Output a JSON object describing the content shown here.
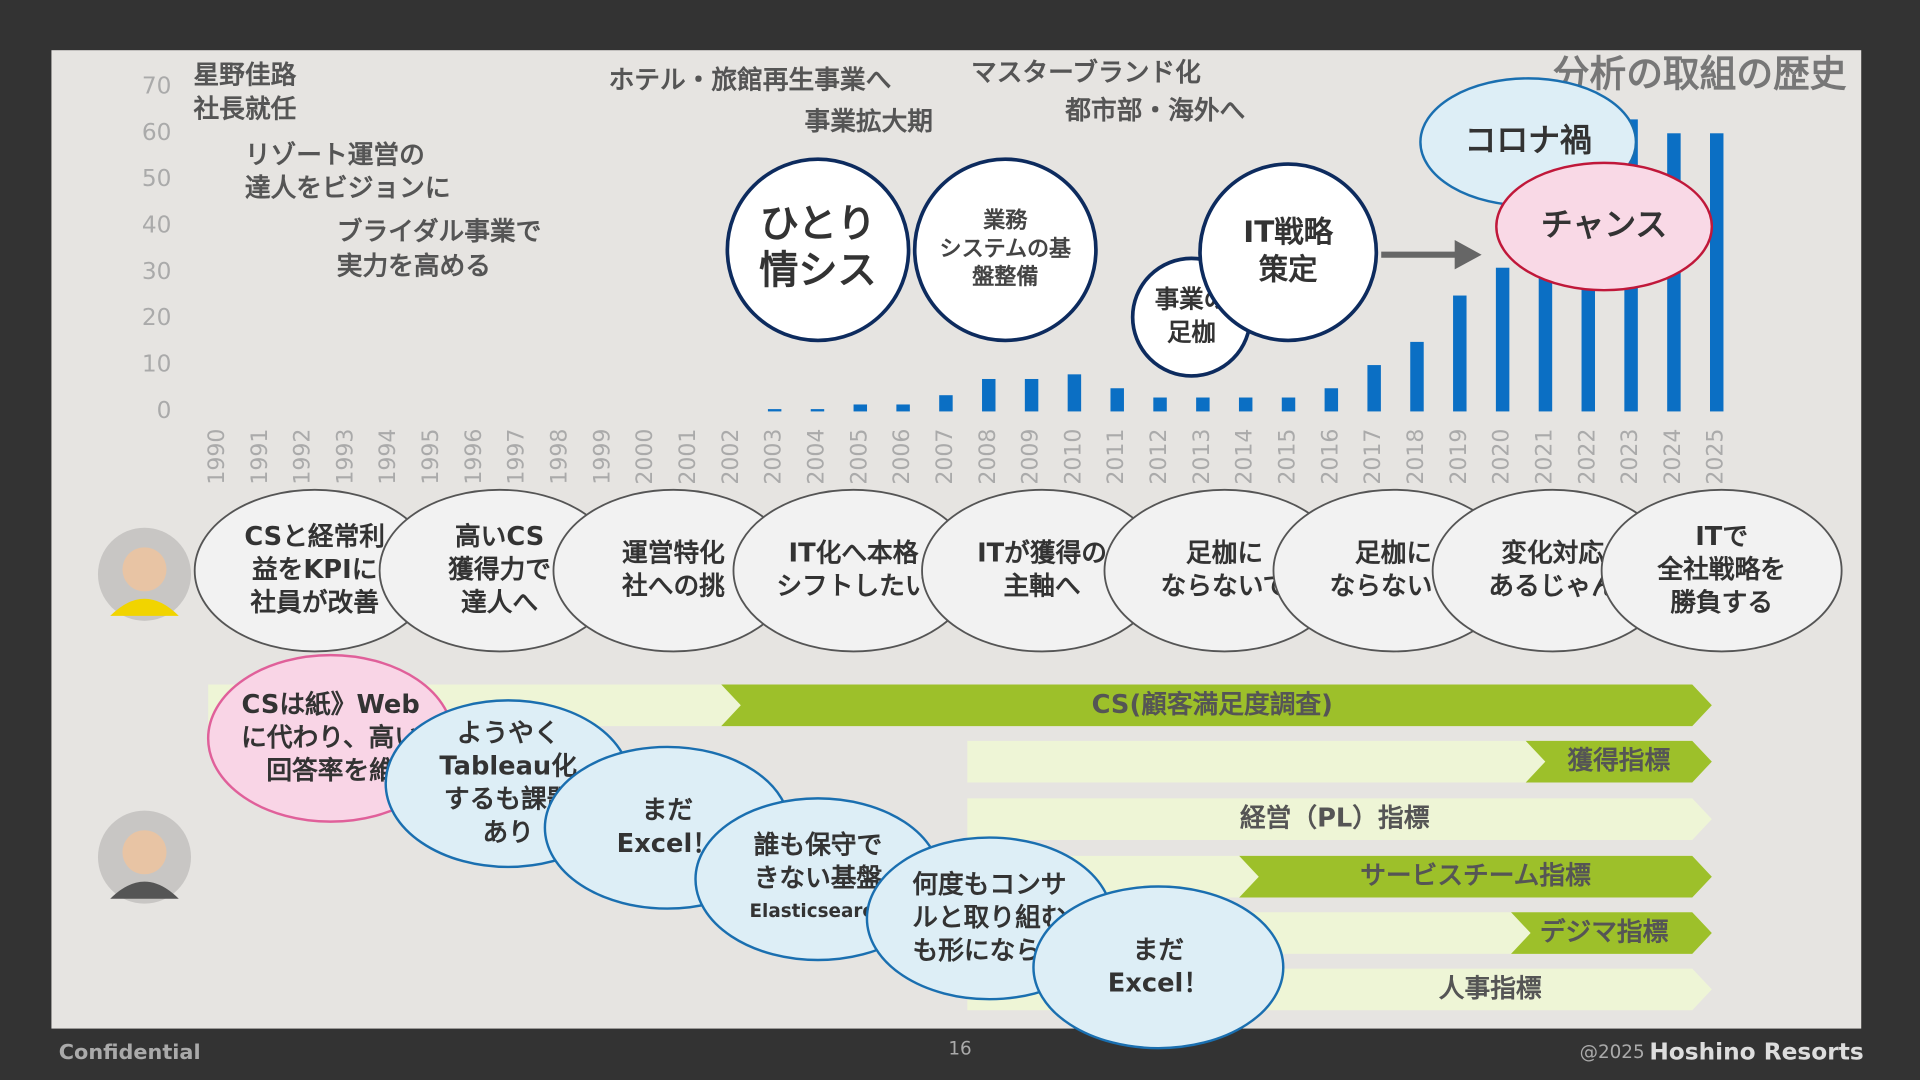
{
  "chart_data": {
    "type": "bar",
    "title": "分析の取組の歴史",
    "categories": [
      "1990",
      "1991",
      "1992",
      "1993",
      "1994",
      "1995",
      "1996",
      "1997",
      "1998",
      "1999",
      "2000",
      "2001",
      "2002",
      "2003",
      "2004",
      "2005",
      "2006",
      "2007",
      "2008",
      "2009",
      "2010",
      "2011",
      "2012",
      "2013",
      "2014",
      "2015",
      "2016",
      "2017",
      "2018",
      "2019",
      "2020",
      "2021",
      "2022",
      "2023",
      "2024",
      "2025"
    ],
    "values": [
      0,
      0,
      0,
      0,
      0,
      0,
      0,
      0,
      0,
      0,
      0,
      0,
      0,
      0.5,
      0.5,
      1.5,
      1.5,
      3.5,
      7,
      7,
      8,
      5,
      3,
      3,
      3,
      3,
      5,
      10,
      15,
      25,
      31,
      38,
      48,
      63,
      60,
      60
    ],
    "color": "#0b6fc4",
    "ylim": [
      0,
      70
    ],
    "yticks": [
      0,
      10,
      20,
      30,
      40,
      50,
      60,
      70
    ],
    "grid": false
  },
  "annotations": [
    {
      "lines": [
        "星野佳路",
        "社長就任"
      ]
    },
    {
      "lines": [
        "リゾート運営の",
        "達人をビジョンに"
      ]
    },
    {
      "lines": [
        "ブライダル事業で",
        "実力を高める"
      ]
    },
    {
      "lines": [
        "ホテル・旅館再生事業へ"
      ]
    },
    {
      "lines": [
        "事業拡大期"
      ]
    },
    {
      "lines": [
        "マスターブランド化"
      ]
    },
    {
      "lines": [
        "都市部・海外へ"
      ]
    }
  ],
  "milestones": [
    {
      "lines": [
        "ひとり",
        "情シス"
      ]
    },
    {
      "lines": [
        "業務",
        "システムの基",
        "盤整備"
      ]
    },
    {
      "lines": [
        "事業の",
        "足枷"
      ]
    },
    {
      "lines": [
        "IT戦略",
        "策定"
      ]
    },
    {
      "lines": [
        "コロナ禍"
      ]
    },
    {
      "lines": [
        "チャンス"
      ]
    }
  ],
  "ceo_comments": [
    {
      "lines": [
        "CSと経常利",
        "益をKPIに",
        "社員が改善"
      ]
    },
    {
      "lines": [
        "高いCS",
        "獲得力で",
        "達人へ"
      ]
    },
    {
      "lines": [
        "運営特化",
        "社への挑"
      ]
    },
    {
      "lines": [
        "IT化へ本格",
        "シフトしたい"
      ]
    },
    {
      "lines": [
        "ITが獲得の",
        "主軸へ"
      ]
    },
    {
      "lines": [
        "足枷に",
        "ならないで"
      ]
    },
    {
      "lines": [
        "足枷に",
        "ならないで"
      ]
    },
    {
      "lines": [
        "変化対応",
        "あるじゃん"
      ]
    },
    {
      "lines": [
        "ITで",
        "全社戦略を",
        "勝負する"
      ]
    }
  ],
  "metrics": [
    {
      "label": "CS(顧客満足度調査)"
    },
    {
      "label": "獲得指標"
    },
    {
      "label": "経営（PL）指標"
    },
    {
      "label": "サービスチーム指標"
    },
    {
      "label": "デジマ指標"
    },
    {
      "label": "人事指標"
    }
  ],
  "staff_comments": [
    {
      "lines": [
        "CSは紙》Web",
        "に代わり、高い",
        "回答率を維"
      ]
    },
    {
      "lines": [
        "ようやく",
        "Tableau化",
        "するも課題",
        "あり"
      ]
    },
    {
      "lines": [
        "まだ",
        "Excel！"
      ]
    },
    {
      "lines": [
        "誰も保守で",
        "きない基盤",
        "Elasticsearch"
      ]
    },
    {
      "lines": [
        "何度もコンサ",
        "ルと取り組む",
        "も形にならず"
      ]
    },
    {
      "lines": [
        "まだ",
        "Excel！"
      ]
    }
  ],
  "footer": {
    "left": "Confidential",
    "page": "16",
    "copyright": "@2025",
    "brand": "Hoshino Resorts"
  }
}
